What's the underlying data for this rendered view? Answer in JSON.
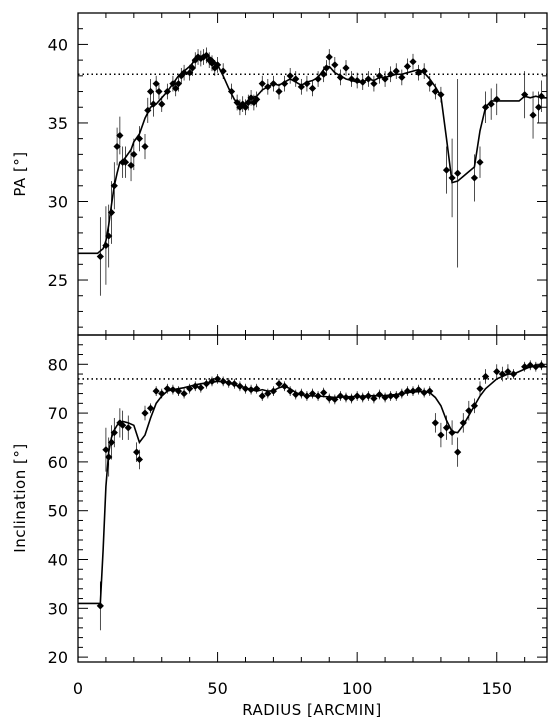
{
  "chart_data": [
    {
      "type": "line",
      "panel": "top",
      "xlabel": "",
      "ylabel": "PA [°]",
      "xlim": [
        0,
        168
      ],
      "ylim": [
        21.5,
        42
      ],
      "xticks": [
        0,
        50,
        100,
        150
      ],
      "yticks": [
        25,
        30,
        35,
        40
      ],
      "reference_line": {
        "y": 38.1,
        "style": "dotted"
      },
      "points": {
        "x": [
          8,
          10,
          11,
          12,
          13,
          14,
          15,
          16,
          17,
          19,
          20,
          22,
          24,
          25,
          26,
          27,
          28,
          29,
          30,
          32,
          34,
          35,
          36,
          37,
          38,
          40,
          41,
          42,
          43,
          44,
          45,
          46,
          47,
          48,
          49,
          50,
          52,
          55,
          57,
          58,
          59,
          60,
          61,
          62,
          63,
          64,
          66,
          68,
          70,
          72,
          74,
          76,
          78,
          80,
          82,
          84,
          86,
          88,
          89,
          90,
          92,
          94,
          96,
          98,
          100,
          102,
          104,
          106,
          108,
          110,
          112,
          114,
          116,
          118,
          120,
          122,
          124,
          126,
          128,
          130,
          132,
          134,
          136,
          142,
          144,
          146,
          148,
          150,
          160,
          163,
          165,
          166
        ],
        "y": [
          26.5,
          27.2,
          27.8,
          29.3,
          31.0,
          33.5,
          34.2,
          32.5,
          32.5,
          32.3,
          33.0,
          34.0,
          33.5,
          35.8,
          37.0,
          36.2,
          37.5,
          37.0,
          36.2,
          37.0,
          37.5,
          37.2,
          37.5,
          38.0,
          38.2,
          38.2,
          38.5,
          39.0,
          39.2,
          39.1,
          39.2,
          39.3,
          39.0,
          38.8,
          38.5,
          38.7,
          38.3,
          37.0,
          36.3,
          36.0,
          36.2,
          36.0,
          36.3,
          36.6,
          36.3,
          36.5,
          37.5,
          37.3,
          37.5,
          37.0,
          37.5,
          38.0,
          37.8,
          37.3,
          37.5,
          37.2,
          37.8,
          38.1,
          38.5,
          39.2,
          38.7,
          37.9,
          38.5,
          37.8,
          37.7,
          37.6,
          37.8,
          37.5,
          38.0,
          37.8,
          38.1,
          38.3,
          37.9,
          38.6,
          38.9,
          38.2,
          38.3,
          37.5,
          37.0,
          36.8,
          32.0,
          31.5,
          31.8,
          31.5,
          32.5,
          36.0,
          36.2,
          36.5,
          36.8,
          35.5,
          36.0,
          36.7
        ],
        "err": [
          2.5,
          2.5,
          2.0,
          2.0,
          1.5,
          1.2,
          1.2,
          1.0,
          1.0,
          1.0,
          1.0,
          0.8,
          0.8,
          0.8,
          0.8,
          0.8,
          0.5,
          0.5,
          0.5,
          0.5,
          0.5,
          0.5,
          0.5,
          0.5,
          0.5,
          0.5,
          0.5,
          0.5,
          0.5,
          0.5,
          0.5,
          0.5,
          0.5,
          0.5,
          0.5,
          0.5,
          0.5,
          0.5,
          0.5,
          0.5,
          0.5,
          0.5,
          0.5,
          0.5,
          0.5,
          0.5,
          0.5,
          0.5,
          0.5,
          0.5,
          0.5,
          0.5,
          0.5,
          0.5,
          0.5,
          0.5,
          0.5,
          0.5,
          0.5,
          0.5,
          0.5,
          0.5,
          0.5,
          0.5,
          0.5,
          0.5,
          0.5,
          0.5,
          0.5,
          0.5,
          0.5,
          0.5,
          0.5,
          0.5,
          0.5,
          0.5,
          0.5,
          0.5,
          0.5,
          0.5,
          1.5,
          2.5,
          6.0,
          1.5,
          1.0,
          1.0,
          1.0,
          1.0,
          1.5,
          1.5,
          1.0,
          1.0
        ]
      },
      "fit": {
        "x": [
          0,
          7,
          9,
          10,
          11,
          12,
          13,
          14,
          15,
          16,
          17,
          19,
          20,
          22,
          24,
          26,
          28,
          30,
          32,
          34,
          36,
          38,
          40,
          42,
          44,
          46,
          48,
          50,
          52,
          54,
          56,
          58,
          60,
          62,
          64,
          66,
          68,
          70,
          72,
          74,
          76,
          78,
          80,
          82,
          84,
          86,
          88,
          90,
          92,
          94,
          96,
          98,
          100,
          102,
          104,
          106,
          108,
          110,
          112,
          114,
          116,
          118,
          120,
          122,
          124,
          126,
          128,
          130,
          132,
          134,
          136,
          138,
          140,
          142,
          144,
          146,
          148,
          150,
          152,
          154,
          156,
          158,
          160,
          162,
          164,
          166,
          168
        ],
        "y": [
          26.7,
          26.7,
          27.0,
          27.5,
          28.5,
          29.8,
          31.0,
          31.8,
          32.5,
          32.6,
          32.8,
          33.3,
          33.8,
          34.3,
          35.3,
          36.0,
          36.2,
          36.6,
          37.0,
          37.5,
          38.0,
          38.3,
          38.6,
          39.0,
          39.2,
          39.3,
          39.1,
          38.7,
          38.0,
          37.2,
          36.5,
          36.1,
          36.2,
          36.6,
          36.7,
          37.1,
          37.3,
          37.5,
          37.4,
          37.6,
          37.8,
          37.6,
          37.4,
          37.6,
          37.7,
          37.9,
          38.4,
          38.6,
          38.2,
          38.0,
          37.8,
          37.7,
          37.6,
          37.6,
          37.8,
          37.7,
          37.9,
          37.9,
          38.0,
          38.1,
          38.1,
          38.2,
          38.3,
          38.4,
          38.2,
          37.8,
          37.3,
          36.7,
          34.0,
          31.2,
          31.3,
          31.6,
          31.9,
          32.2,
          34.5,
          36.0,
          36.4,
          36.4,
          36.4,
          36.4,
          36.4,
          36.4,
          36.7,
          36.6,
          36.7,
          36.6,
          36.6
        ]
      }
    },
    {
      "type": "line",
      "panel": "bottom",
      "xlabel": "RADIUS [ARCMIN]",
      "ylabel": "Inclination [°]",
      "xlim": [
        0,
        168
      ],
      "ylim": [
        19,
        86
      ],
      "xticks": [
        0,
        50,
        100,
        150
      ],
      "yticks": [
        20,
        30,
        40,
        50,
        60,
        70,
        80
      ],
      "reference_line": {
        "y": 77,
        "style": "dotted"
      },
      "points": {
        "x": [
          8,
          10,
          11,
          12,
          13,
          15,
          16,
          18,
          21,
          22,
          24,
          26,
          28,
          30,
          32,
          34,
          36,
          38,
          40,
          42,
          44,
          46,
          48,
          50,
          52,
          54,
          56,
          58,
          60,
          62,
          64,
          66,
          68,
          70,
          72,
          74,
          76,
          78,
          80,
          82,
          84,
          86,
          88,
          90,
          92,
          94,
          96,
          98,
          100,
          102,
          104,
          106,
          108,
          110,
          112,
          114,
          116,
          118,
          120,
          122,
          124,
          126,
          128,
          130,
          132,
          134,
          136,
          138,
          140,
          142,
          144,
          146,
          150,
          152,
          154,
          156,
          160,
          162,
          164,
          166
        ],
        "y": [
          30.5,
          62.5,
          61.0,
          64.0,
          66.0,
          68.0,
          67.5,
          67.0,
          62.0,
          60.5,
          70.0,
          71.0,
          74.5,
          74.0,
          75.0,
          74.8,
          74.5,
          74.0,
          75.0,
          75.5,
          75.2,
          76.0,
          76.5,
          77.0,
          76.5,
          76.2,
          76.0,
          75.5,
          75.0,
          74.8,
          75.0,
          73.5,
          74.0,
          74.5,
          76.0,
          75.5,
          74.5,
          73.8,
          74.0,
          73.5,
          74.0,
          73.5,
          74.2,
          73.0,
          72.8,
          73.5,
          73.2,
          73.0,
          73.5,
          73.2,
          73.5,
          73.0,
          73.8,
          73.2,
          73.5,
          73.5,
          74.0,
          74.5,
          74.5,
          74.8,
          74.2,
          74.5,
          68.0,
          65.5,
          67.0,
          66.0,
          62.0,
          68.0,
          70.5,
          71.5,
          75.0,
          77.5,
          78.5,
          78.0,
          78.5,
          78.0,
          79.5,
          79.8,
          79.5,
          79.8
        ],
        "err": [
          5.0,
          4.5,
          4.0,
          3.5,
          3.0,
          3.0,
          3.0,
          2.5,
          2.0,
          2.0,
          1.5,
          1.0,
          1.0,
          1.0,
          1.0,
          1.0,
          1.0,
          1.0,
          1.0,
          1.0,
          1.0,
          1.0,
          1.0,
          1.0,
          1.0,
          1.0,
          1.0,
          1.0,
          1.0,
          1.0,
          1.0,
          1.0,
          1.0,
          1.0,
          1.0,
          1.0,
          1.0,
          1.0,
          1.0,
          1.0,
          1.0,
          1.0,
          1.0,
          1.0,
          1.0,
          1.0,
          1.0,
          1.0,
          1.0,
          1.0,
          1.0,
          1.0,
          1.0,
          1.0,
          1.0,
          1.0,
          1.0,
          1.0,
          1.0,
          1.0,
          1.0,
          1.0,
          2.0,
          2.5,
          2.5,
          2.5,
          3.0,
          2.0,
          2.0,
          1.5,
          1.5,
          1.5,
          1.5,
          1.5,
          1.5,
          1.0,
          1.0,
          1.0,
          1.0,
          1.0
        ]
      },
      "fit": {
        "x": [
          0,
          8,
          9,
          10,
          11,
          12,
          13,
          14,
          15,
          16,
          18,
          20,
          22,
          24,
          26,
          28,
          30,
          32,
          34,
          36,
          38,
          40,
          42,
          44,
          46,
          48,
          50,
          52,
          54,
          56,
          58,
          60,
          62,
          64,
          66,
          68,
          70,
          72,
          74,
          76,
          78,
          80,
          82,
          84,
          86,
          88,
          90,
          92,
          94,
          96,
          98,
          100,
          102,
          104,
          106,
          108,
          110,
          112,
          114,
          116,
          118,
          120,
          122,
          124,
          126,
          128,
          130,
          132,
          134,
          136,
          138,
          140,
          142,
          144,
          146,
          148,
          150,
          152,
          154,
          156,
          158,
          160,
          162,
          164,
          166,
          168
        ],
        "y": [
          31,
          31,
          42,
          55,
          62,
          65,
          66.5,
          67.5,
          68,
          68.3,
          68,
          67.5,
          64,
          65.5,
          69,
          72,
          73.5,
          74.5,
          74.8,
          75,
          75.2,
          75.5,
          75.8,
          76,
          76.2,
          76.3,
          76.5,
          76.4,
          76.2,
          75.8,
          75.5,
          75.2,
          74.8,
          74.5,
          74.8,
          74.5,
          74.6,
          75.2,
          75.5,
          75,
          74.2,
          73.8,
          73.6,
          73.5,
          73.5,
          73.4,
          73.3,
          73.2,
          73.3,
          73.3,
          73.4,
          73.3,
          73.5,
          73.5,
          73.6,
          73.5,
          73.6,
          73.7,
          73.8,
          74,
          74.2,
          74.3,
          74.4,
          74.5,
          74.2,
          73.2,
          71.5,
          68.5,
          66.2,
          66,
          67.5,
          69.5,
          71.5,
          73.5,
          75,
          76,
          77,
          77.5,
          78,
          78,
          78.5,
          79,
          79.5,
          79.5,
          79.5,
          79.5
        ]
      }
    }
  ]
}
